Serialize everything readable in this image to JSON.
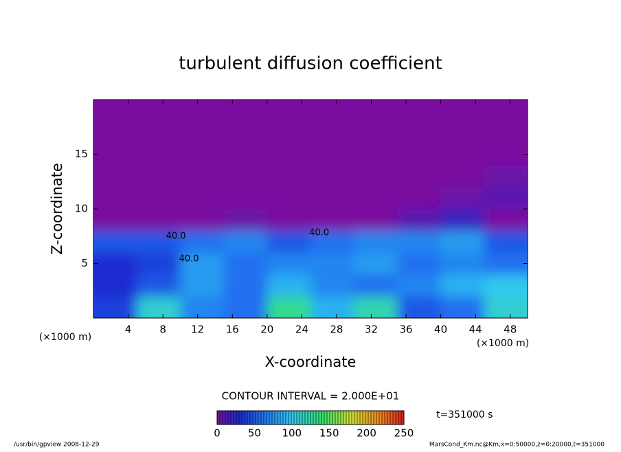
{
  "chart_data": {
    "type": "contour",
    "title": "turbulent diffusion coefficient",
    "xlabel": "X-coordinate",
    "ylabel": "Z-coordinate",
    "xunit": "(×1000 m)",
    "yunit": "(×1000 m)",
    "xlim": [
      0,
      50
    ],
    "ylim": [
      0,
      20
    ],
    "xticks": [
      4,
      8,
      12,
      16,
      20,
      24,
      28,
      32,
      36,
      40,
      44,
      48
    ],
    "yticks": [
      5,
      10,
      15
    ],
    "x_edges": [
      0,
      5,
      10,
      15,
      20,
      25,
      30,
      35,
      40,
      45,
      50
    ],
    "z_edges": [
      0,
      2,
      4,
      6,
      8,
      10,
      12,
      14,
      16,
      18,
      20
    ],
    "values": [
      [
        40,
        110,
        70,
        60,
        130,
        90,
        120,
        50,
        60,
        110
      ],
      [
        30,
        50,
        80,
        60,
        90,
        70,
        60,
        70,
        90,
        100
      ],
      [
        30,
        40,
        80,
        60,
        70,
        70,
        80,
        60,
        70,
        60
      ],
      [
        50,
        50,
        60,
        70,
        50,
        60,
        70,
        70,
        80,
        50
      ],
      [
        0,
        0,
        0,
        5,
        0,
        0,
        0,
        10,
        20,
        0
      ],
      [
        0,
        0,
        0,
        0,
        0,
        0,
        0,
        0,
        5,
        10
      ],
      [
        0,
        0,
        0,
        0,
        0,
        0,
        0,
        0,
        0,
        5
      ],
      [
        0,
        0,
        0,
        0,
        0,
        0,
        0,
        0,
        0,
        0
      ],
      [
        0,
        0,
        0,
        0,
        0,
        0,
        0,
        0,
        0,
        0
      ],
      [
        0,
        0,
        0,
        0,
        0,
        0,
        0,
        0,
        0,
        0
      ]
    ],
    "contour_labels": [
      {
        "text": "40.0",
        "x": 9.5,
        "z": 7.5
      },
      {
        "text": "40.0",
        "x": 11,
        "z": 5.4
      },
      {
        "text": "40.0",
        "x": 26,
        "z": 7.8
      }
    ],
    "colormap": [
      {
        "value": 0,
        "color": "#7a10a0"
      },
      {
        "value": 30,
        "color": "#1a2ad0"
      },
      {
        "value": 60,
        "color": "#2070f0"
      },
      {
        "value": 100,
        "color": "#30c8f0"
      },
      {
        "value": 140,
        "color": "#30e070"
      },
      {
        "value": 180,
        "color": "#d0e030"
      },
      {
        "value": 220,
        "color": "#f08020"
      },
      {
        "value": 250,
        "color": "#d02020"
      }
    ],
    "colorbar_lim": [
      0,
      250
    ],
    "colorbar_ticks": [
      0,
      50,
      100,
      150,
      200,
      250
    ],
    "contour_interval": "CONTOUR INTERVAL = 2.000E+01",
    "time_label": "t=351000 s",
    "footer_left": "/usr/bin/gpview  2008-12-29",
    "footer_right": "MarsCond_Km.nc@Km,x=0:50000,z=0:20000,t=351000"
  }
}
